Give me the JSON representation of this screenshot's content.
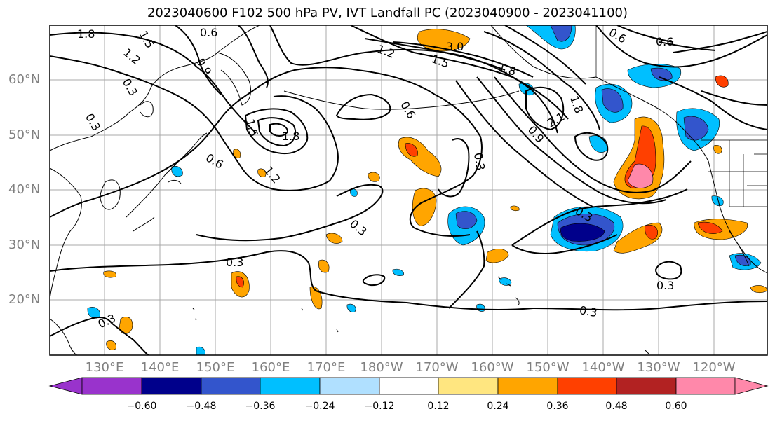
{
  "title": "2023040600 F102 500 hPa PV, IVT Landfall PC (2023040900 - 2023041100)",
  "lat_labels": [
    "60°N",
    "50°N",
    "40°N",
    "30°N",
    "20°N"
  ],
  "lon_labels": [
    "130°E",
    "140°E",
    "150°E",
    "160°E",
    "170°E",
    "180°W",
    "170°W",
    "160°W",
    "150°W",
    "140°W",
    "130°W",
    "120°W"
  ],
  "colorbar": {
    "ticks": [
      "−0.60",
      "−0.48",
      "−0.36",
      "−0.24",
      "−0.12",
      "0.12",
      "0.24",
      "0.36",
      "0.48",
      "0.60"
    ],
    "colors": [
      "#9933cc",
      "#00008b",
      "#3355cc",
      "#00bfff",
      "#b0e0ff",
      "#ffffff",
      "#ffe680",
      "#ffa500",
      "#ff4000",
      "#b22222",
      "#ff88aa"
    ]
  },
  "contour_labels": [
    "1.8",
    "1.5",
    "1.2",
    "0.6",
    "0.9",
    "0.3",
    "0.3",
    "0.6",
    "1.8",
    "1.5",
    "1.2",
    "0.6",
    "0.3",
    "0.3",
    "0.3",
    "0.3",
    "0.6",
    "0.6",
    "0.9",
    "1.8",
    "2.1",
    "0.3",
    "0.3",
    "1.2",
    "1.5",
    "3.0",
    "1.8",
    "0.3"
  ]
}
